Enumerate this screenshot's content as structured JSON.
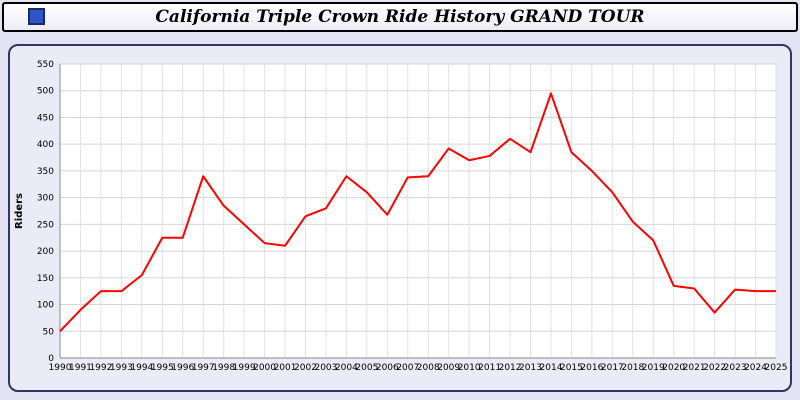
{
  "header": {
    "title": "California Triple Crown Ride History GRAND TOUR"
  },
  "chart_data": {
    "type": "line",
    "title": "California Triple Crown Ride History GRAND TOUR",
    "xlabel": "",
    "ylabel": "Riders",
    "ylim": [
      0,
      550
    ],
    "ytick_step": 50,
    "grid": true,
    "legend_position": "none",
    "line_color": "#ff0000",
    "x": [
      1990,
      1991,
      1992,
      1993,
      1994,
      1995,
      1996,
      1997,
      1998,
      1999,
      2000,
      2001,
      2002,
      2003,
      2004,
      2005,
      2006,
      2007,
      2008,
      2009,
      2010,
      2011,
      2012,
      2013,
      2014,
      2015,
      2016,
      2017,
      2018,
      2019,
      2020,
      2021,
      2022,
      2023,
      2024,
      2025
    ],
    "series": [
      {
        "name": "Riders",
        "color": "#ff0000",
        "values": [
          50,
          90,
          125,
          125,
          155,
          225,
          225,
          340,
          285,
          250,
          215,
          210,
          265,
          280,
          340,
          310,
          268,
          338,
          340,
          392,
          370,
          378,
          410,
          385,
          495,
          385,
          350,
          310,
          255,
          220,
          135,
          130,
          85,
          128,
          125,
          125
        ]
      }
    ]
  }
}
